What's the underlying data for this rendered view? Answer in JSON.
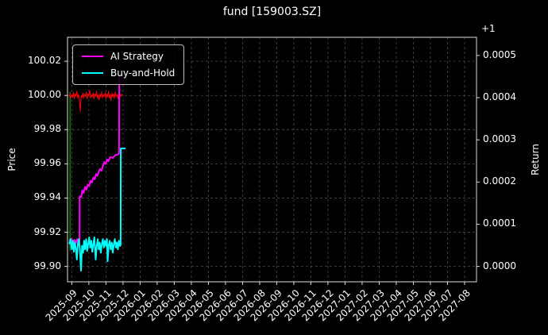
{
  "title": "fund [159003.SZ]",
  "axes": {
    "left_label": "Price",
    "right_label": "Return",
    "right_offset_text": "+1"
  },
  "legend": {
    "position": "upper left",
    "entries": [
      {
        "label": "AI Strategy",
        "color": "#ff00ff"
      },
      {
        "label": "Buy-and-Hold",
        "color": "#00ffff"
      }
    ]
  },
  "chart_data": {
    "type": "line",
    "title": "fund [159003.SZ]",
    "xlabel": "",
    "ylabel_left": "Price",
    "ylabel_right": "Return",
    "return_axis_offset": "+1",
    "grid": true,
    "legend_position": "upper left",
    "x_unit": "months since 2025-09",
    "x_range": [
      -0.25,
      23.7
    ],
    "price_range": [
      99.891,
      100.034
    ],
    "return_range": [
      -3.65e-05,
      0.000543
    ],
    "x_tick_labels": [
      "2025-09",
      "2025-10",
      "2025-11",
      "2025-12",
      "2026-01",
      "2026-02",
      "2026-03",
      "2026-04",
      "2026-05",
      "2026-06",
      "2026-07",
      "2026-08",
      "2026-09",
      "2026-10",
      "2026-11",
      "2026-12",
      "2027-01",
      "2027-02",
      "2027-03",
      "2027-04",
      "2027-05",
      "2027-06",
      "2027-07",
      "2027-08"
    ],
    "price_tick_labels": [
      "99.90",
      "99.92",
      "99.94",
      "99.96",
      "99.98",
      "100.00",
      "100.02"
    ],
    "return_tick_labels": [
      "0.0000",
      "0.0001",
      "0.0002",
      "0.0003",
      "0.0004",
      "0.0005"
    ],
    "series": [
      {
        "name": "buy-signal-marker",
        "color": "#008000",
        "width": 1.5,
        "axis": "left",
        "points": [
          [
            -0.1,
            99.909
          ],
          [
            -0.1,
            100.002
          ]
        ]
      },
      {
        "name": "fund-price",
        "color": "#ff0000",
        "width": 1,
        "axis": "left",
        "points": [
          [
            -0.15,
            99.9995
          ],
          [
            -0.1,
            100.001
          ],
          [
            -0.05,
            99.9985
          ],
          [
            0,
            100.0005
          ],
          [
            0.05,
            99.999
          ],
          [
            0.1,
            100.002
          ],
          [
            0.15,
            99.998
          ],
          [
            0.2,
            100.001
          ],
          [
            0.25,
            99.9995
          ],
          [
            0.3,
            100.0025
          ],
          [
            0.35,
            99.9985
          ],
          [
            0.4,
            100.0005
          ],
          [
            0.45,
            99.997
          ],
          [
            0.5,
            99.9905
          ],
          [
            0.55,
            100
          ],
          [
            0.6,
            99.999
          ],
          [
            0.65,
            100.0015
          ],
          [
            0.7,
            99.9985
          ],
          [
            0.75,
            100.0005
          ],
          [
            0.8,
            99.9995
          ],
          [
            0.85,
            100.002
          ],
          [
            0.9,
            99.998
          ],
          [
            0.95,
            100.001
          ],
          [
            1,
            100
          ],
          [
            1.05,
            100.003
          ],
          [
            1.1,
            99.9985
          ],
          [
            1.15,
            100.0005
          ],
          [
            1.2,
            99.999
          ],
          [
            1.25,
            100.0015
          ],
          [
            1.3,
            99.998
          ],
          [
            1.35,
            100.001
          ],
          [
            1.4,
            99.9995
          ],
          [
            1.45,
            100.0025
          ],
          [
            1.5,
            99.9985
          ],
          [
            1.55,
            100.0005
          ],
          [
            1.6,
            99.9975
          ],
          [
            1.65,
            100.001
          ],
          [
            1.7,
            99.999
          ],
          [
            1.75,
            100.002
          ],
          [
            1.8,
            99.9985
          ],
          [
            1.85,
            100.0005
          ],
          [
            1.9,
            99.9995
          ],
          [
            1.95,
            100.0015
          ],
          [
            2,
            99.998
          ],
          [
            2.05,
            100.001
          ],
          [
            2.1,
            99.999
          ],
          [
            2.15,
            100.0025
          ],
          [
            2.2,
            99.9985
          ],
          [
            2.25,
            100.0005
          ],
          [
            2.3,
            99.997
          ],
          [
            2.35,
            100.0015
          ],
          [
            2.4,
            99.999
          ],
          [
            2.45,
            100.001
          ],
          [
            2.5,
            99.9985
          ],
          [
            2.55,
            100.002
          ],
          [
            2.6,
            99.9995
          ],
          [
            2.65,
            100.0005
          ],
          [
            2.7,
            99.998
          ],
          [
            2.75,
            100.0015
          ],
          [
            2.8,
            99.999
          ],
          [
            2.85,
            100.0005
          ],
          [
            2.9,
            99.9995
          ],
          [
            2.95,
            100.001
          ]
        ]
      },
      {
        "name": "AI Strategy",
        "color": "#ff00ff",
        "width": 2,
        "axis": "left",
        "points": [
          [
            -0.15,
            99.915
          ],
          [
            0,
            99.916
          ],
          [
            0.08,
            99.913
          ],
          [
            0.16,
            99.9155
          ],
          [
            0.24,
            99.9135
          ],
          [
            0.32,
            99.916
          ],
          [
            0.4,
            99.914
          ],
          [
            0.45,
            99.9145
          ],
          [
            0.46,
            99.941
          ],
          [
            0.55,
            99.9405
          ],
          [
            0.62,
            99.9445
          ],
          [
            0.7,
            99.943
          ],
          [
            0.78,
            99.9465
          ],
          [
            0.86,
            99.945
          ],
          [
            0.94,
            99.948
          ],
          [
            1.02,
            99.947
          ],
          [
            1.1,
            99.95
          ],
          [
            1.18,
            99.949
          ],
          [
            1.26,
            99.952
          ],
          [
            1.34,
            99.951
          ],
          [
            1.42,
            99.954
          ],
          [
            1.5,
            99.953
          ],
          [
            1.58,
            99.9555
          ],
          [
            1.66,
            99.957
          ],
          [
            1.74,
            99.956
          ],
          [
            1.82,
            99.9585
          ],
          [
            1.9,
            99.961
          ],
          [
            1.98,
            99.96
          ],
          [
            2.06,
            99.9625
          ],
          [
            2.14,
            99.9615
          ],
          [
            2.25,
            99.964
          ],
          [
            2.4,
            99.9635
          ],
          [
            2.55,
            99.965
          ],
          [
            2.7,
            99.9655
          ],
          [
            2.77,
            99.966
          ],
          [
            2.78,
            100.012
          ],
          [
            3,
            100.012
          ]
        ]
      },
      {
        "name": "Buy-and-Hold",
        "color": "#00ffff",
        "width": 2,
        "axis": "left",
        "points": [
          [
            -0.15,
            99.913
          ],
          [
            -0.08,
            99.916
          ],
          [
            0,
            99.91
          ],
          [
            0.06,
            99.915
          ],
          [
            0.12,
            99.9085
          ],
          [
            0.18,
            99.914
          ],
          [
            0.24,
            99.9105
          ],
          [
            0.3,
            99.904
          ],
          [
            0.36,
            99.9135
          ],
          [
            0.42,
            99.916
          ],
          [
            0.48,
            99.909
          ],
          [
            0.54,
            99.8975
          ],
          [
            0.6,
            99.912
          ],
          [
            0.66,
            99.908
          ],
          [
            0.72,
            99.915
          ],
          [
            0.78,
            99.91
          ],
          [
            0.84,
            99.916
          ],
          [
            0.9,
            99.909
          ],
          [
            0.96,
            99.913
          ],
          [
            1.02,
            99.917
          ],
          [
            1.08,
            99.911
          ],
          [
            1.14,
            99.915
          ],
          [
            1.2,
            99.9085
          ],
          [
            1.26,
            99.913
          ],
          [
            1.32,
            99.917
          ],
          [
            1.4,
            99.904
          ],
          [
            1.46,
            99.912
          ],
          [
            1.52,
            99.916
          ],
          [
            1.58,
            99.91
          ],
          [
            1.64,
            99.914
          ],
          [
            1.7,
            99.908
          ],
          [
            1.76,
            99.913
          ],
          [
            1.82,
            99.916
          ],
          [
            1.88,
            99.911
          ],
          [
            1.94,
            99.915
          ],
          [
            2,
            99.912
          ],
          [
            2.06,
            99.916
          ],
          [
            2.1,
            99.903
          ],
          [
            2.16,
            99.912
          ],
          [
            2.22,
            99.915
          ],
          [
            2.28,
            99.91
          ],
          [
            2.34,
            99.914
          ],
          [
            2.4,
            99.908
          ],
          [
            2.46,
            99.913
          ],
          [
            2.52,
            99.916
          ],
          [
            2.58,
            99.911
          ],
          [
            2.64,
            99.914
          ],
          [
            2.7,
            99.91
          ],
          [
            2.76,
            99.915
          ],
          [
            2.82,
            99.912
          ],
          [
            2.86,
            99.9125
          ],
          [
            2.87,
            99.969
          ],
          [
            3,
            99.969
          ],
          [
            3.15,
            99.969
          ]
        ]
      }
    ]
  }
}
